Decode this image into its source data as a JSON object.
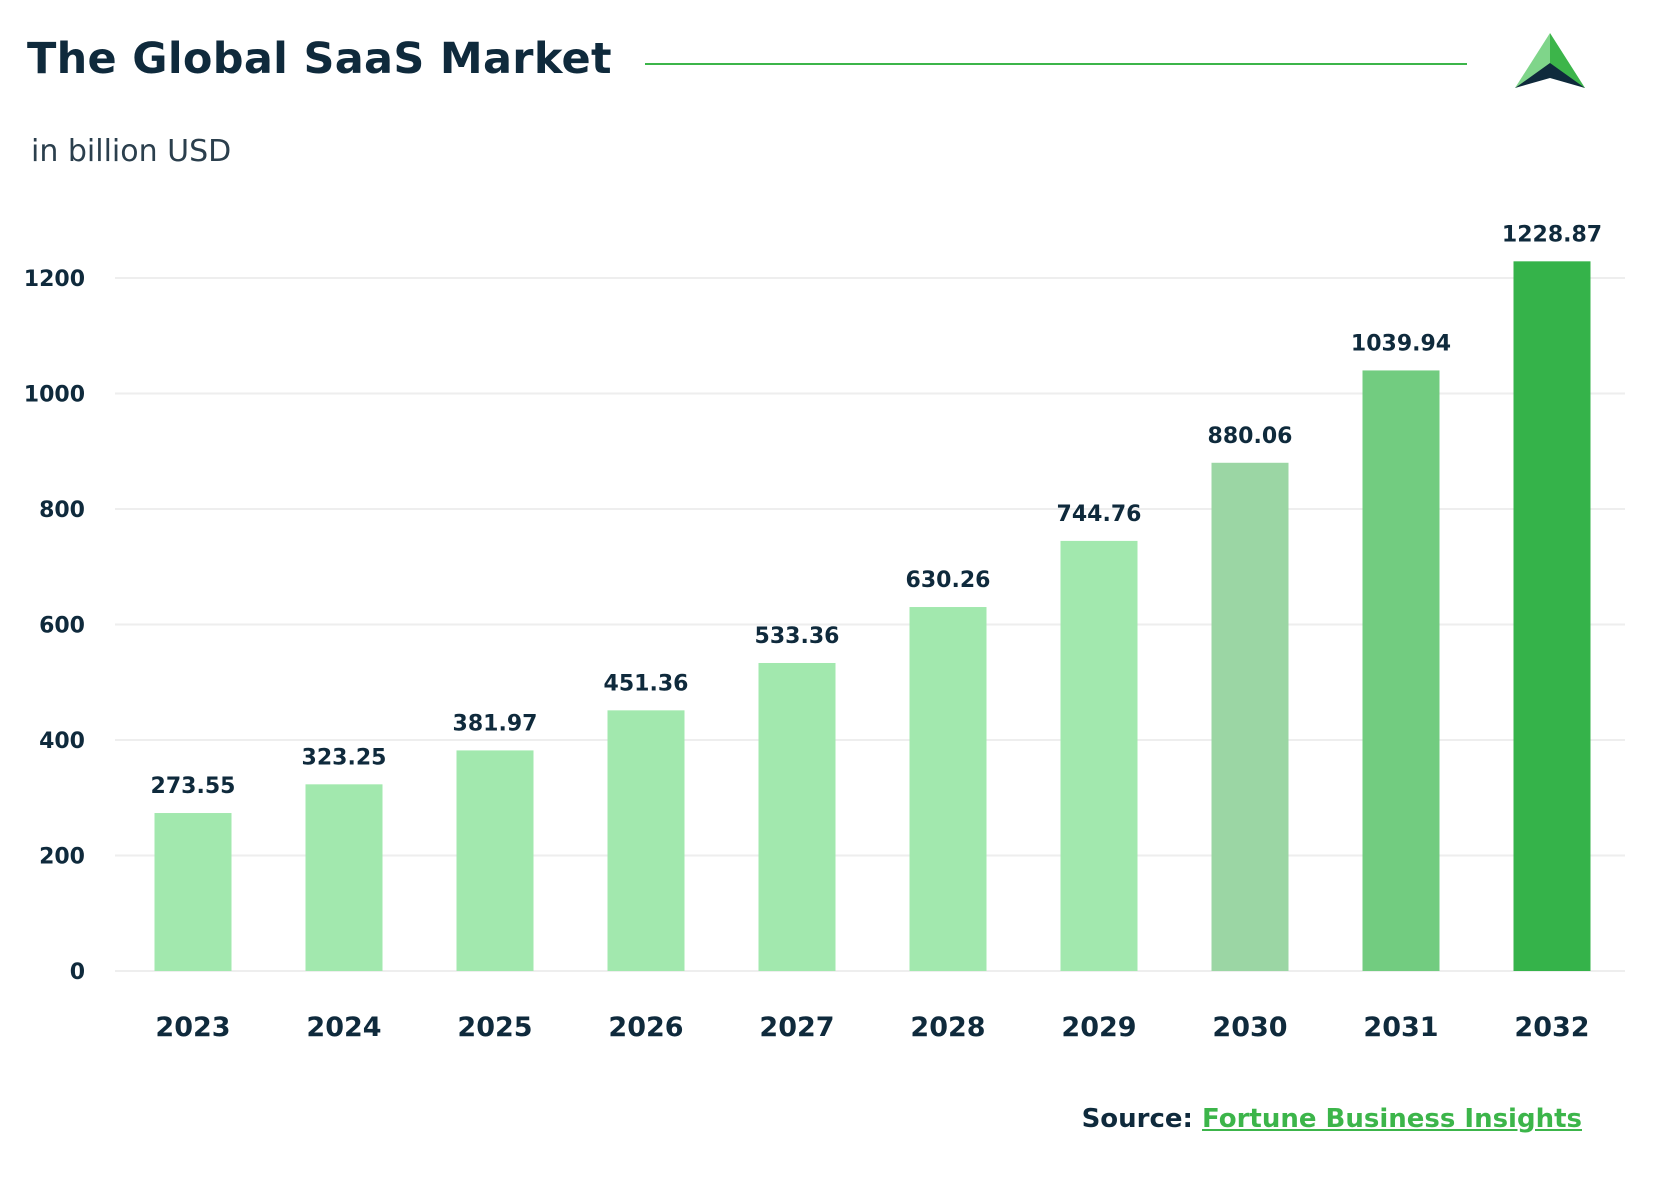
{
  "header": {
    "title": "The Global SaaS Market",
    "subtitle": "in billion USD"
  },
  "source": {
    "label": "Source:",
    "link_text": "Fortune Business Insights"
  },
  "colors": {
    "bar_light": "#a2e8ae",
    "bar_mid": "#9bd6a4",
    "bar_med": "#72cc80",
    "bar_dark": "#35b34a",
    "accent": "#3cb54a",
    "text": "#0f2a3c"
  },
  "chart_data": {
    "type": "bar",
    "title": "The Global SaaS Market",
    "ylabel": "in billion USD",
    "xlabel": "",
    "categories": [
      "2023",
      "2024",
      "2025",
      "2026",
      "2027",
      "2028",
      "2029",
      "2030",
      "2031",
      "2032"
    ],
    "values": [
      273.55,
      323.25,
      381.97,
      451.36,
      533.36,
      630.26,
      744.76,
      880.06,
      1039.94,
      1228.87
    ],
    "value_labels": [
      "273.55",
      "323.25",
      "381.97",
      "451.36",
      "533.36",
      "630.26",
      "744.76",
      "880.06",
      "1039.94",
      "1228.87"
    ],
    "bar_colors": [
      "#a2e8ae",
      "#a2e8ae",
      "#a2e8ae",
      "#a2e8ae",
      "#a2e8ae",
      "#a2e8ae",
      "#a2e8ae",
      "#9bd6a4",
      "#72cc80",
      "#35b34a"
    ],
    "ylim": [
      0,
      1200
    ],
    "yticks": [
      0,
      200,
      400,
      600,
      800,
      1000,
      1200
    ],
    "grid": true
  }
}
